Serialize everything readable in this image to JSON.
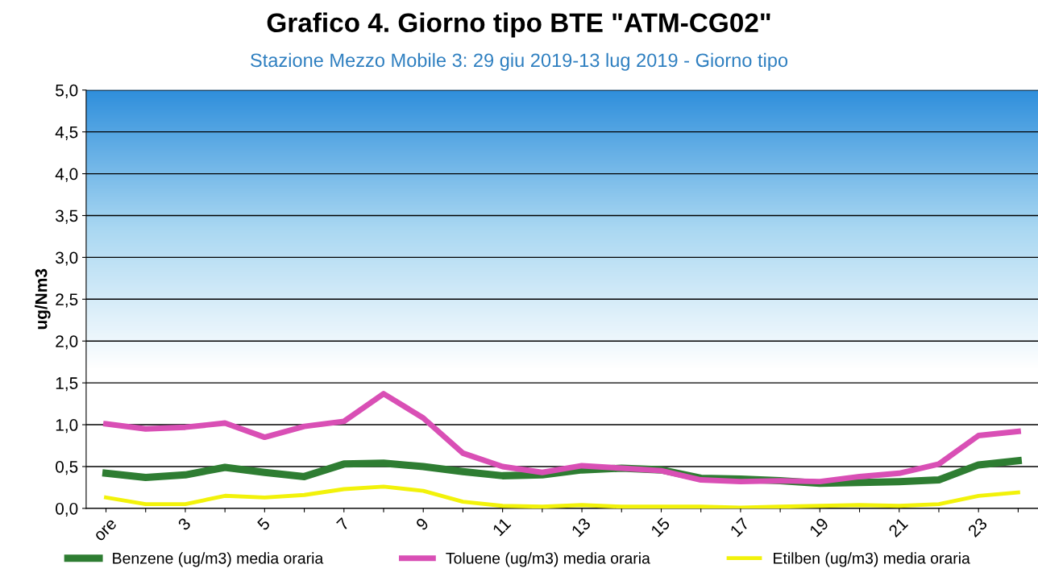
{
  "chart_data": {
    "type": "line",
    "title": "Grafico 4. Giorno tipo BTE \"ATM-CG02\"",
    "subtitle": "Stazione Mezzo Mobile 3: 29 giu 2019-13 lug 2019 - Giorno tipo",
    "ylabel": "ug/Nm3",
    "categories": [
      "ore",
      null,
      "3",
      null,
      "5",
      null,
      "7",
      null,
      "9",
      null,
      "11",
      null,
      "13",
      null,
      "15",
      null,
      "17",
      null,
      "19",
      null,
      "21",
      null,
      "23",
      null
    ],
    "series": [
      {
        "name": "Benzene (ug/m3) media oraria",
        "color": "#2e7d32",
        "values": [
          0.42,
          0.37,
          0.4,
          0.49,
          0.43,
          0.38,
          0.53,
          0.54,
          0.5,
          0.44,
          0.39,
          0.4,
          0.46,
          0.48,
          0.46,
          0.36,
          0.35,
          0.33,
          0.3,
          0.31,
          0.32,
          0.34,
          0.52,
          0.57
        ]
      },
      {
        "name": "Toluene (ug/m3) media oraria",
        "color": "#d94fb5",
        "values": [
          1.01,
          0.95,
          0.97,
          1.02,
          0.85,
          0.98,
          1.04,
          1.37,
          1.08,
          0.66,
          0.5,
          0.43,
          0.51,
          0.48,
          0.45,
          0.34,
          0.32,
          0.33,
          0.32,
          0.38,
          0.42,
          0.53,
          0.87,
          0.92
        ]
      },
      {
        "name": "Etilben (ug/m3) media oraria",
        "color": "#f2f20a",
        "values": [
          0.13,
          0.05,
          0.05,
          0.15,
          0.13,
          0.16,
          0.23,
          0.26,
          0.21,
          0.08,
          0.03,
          0.02,
          0.04,
          0.02,
          0.02,
          0.02,
          0.01,
          0.02,
          0.03,
          0.04,
          0.03,
          0.05,
          0.15,
          0.19
        ]
      }
    ],
    "ylim": [
      0,
      5
    ],
    "yticks": [
      {
        "value": 0,
        "label": "0,0"
      },
      {
        "value": 0.5,
        "label": "0,5"
      },
      {
        "value": 1,
        "label": "1,0"
      },
      {
        "value": 1.5,
        "label": "1,5"
      },
      {
        "value": 2,
        "label": "2,0"
      },
      {
        "value": 2.5,
        "label": "2,5"
      },
      {
        "value": 3,
        "label": "3,0"
      },
      {
        "value": 3.5,
        "label": "3,5"
      },
      {
        "value": 4,
        "label": "4,0"
      },
      {
        "value": 4.5,
        "label": "4,5"
      },
      {
        "value": 5,
        "label": "5,0"
      }
    ],
    "grid": "y",
    "legend": "bottom",
    "marker": "none",
    "line_style": "solid"
  }
}
